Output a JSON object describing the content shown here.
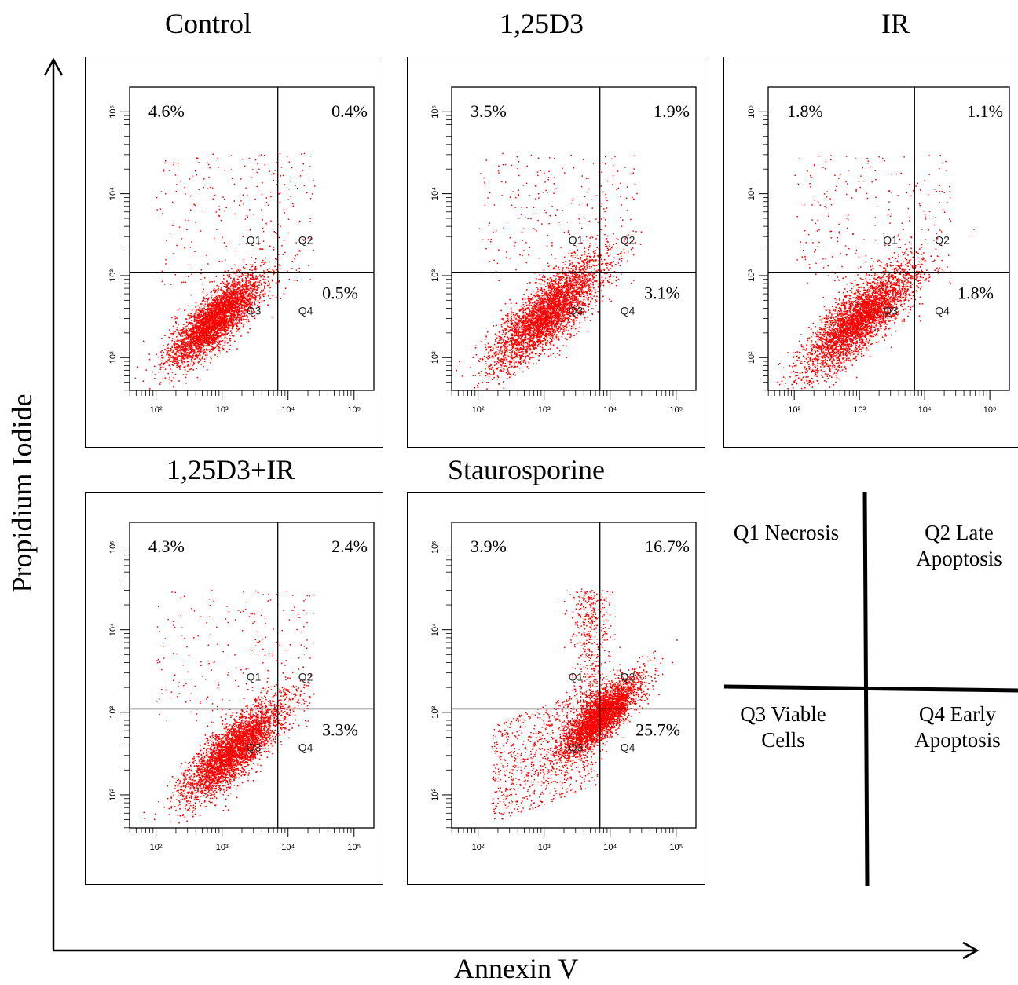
{
  "axis_labels": {
    "x": "Annexin V",
    "y": "Propidium Iodide"
  },
  "colors": {
    "dots": "#ff0000",
    "lines": "#000000"
  },
  "legend": {
    "q1": [
      "Q1 Necrosis"
    ],
    "q2": [
      "Q2 Late",
      "Apoptosis"
    ],
    "q3": [
      "Q3 Viable",
      "Cells"
    ],
    "q4": [
      "Q4 Early",
      "Apoptosis"
    ]
  },
  "chart_data": [
    {
      "type": "scatter",
      "title": "Control",
      "xscale": "log",
      "yscale": "log",
      "x_ticks": [
        "10²",
        "10³",
        "10⁴",
        "10⁵"
      ],
      "y_ticks": [
        "10²",
        "10³",
        "10⁴",
        "10⁵"
      ],
      "gates": {
        "x": 7000,
        "y": 1100
      },
      "quadrant_labels": [
        "Q1",
        "Q2",
        "Q3",
        "Q4"
      ],
      "percentages": {
        "Q1": "4.6%",
        "Q2": "0.4%",
        "Q4": "0.5%"
      },
      "population": {
        "center_x": 800,
        "center_y": 300,
        "spread": 0.35
      }
    },
    {
      "type": "scatter",
      "title": "1,25D3",
      "xscale": "log",
      "yscale": "log",
      "x_ticks": [
        "10²",
        "10³",
        "10⁴",
        "10⁵"
      ],
      "y_ticks": [
        "10²",
        "10³",
        "10⁴",
        "10⁵"
      ],
      "gates": {
        "x": 7000,
        "y": 1100
      },
      "quadrant_labels": [
        "Q1",
        "Q2",
        "Q3",
        "Q4"
      ],
      "percentages": {
        "Q1": "3.5%",
        "Q2": "1.9%",
        "Q4": "3.1%"
      },
      "population": {
        "center_x": 1100,
        "center_y": 350,
        "spread": 0.42
      }
    },
    {
      "type": "scatter",
      "title": "IR",
      "xscale": "log",
      "yscale": "log",
      "x_ticks": [
        "10²",
        "10³",
        "10⁴",
        "10⁵"
      ],
      "y_ticks": [
        "10²",
        "10³",
        "10⁴",
        "10⁵"
      ],
      "gates": {
        "x": 7000,
        "y": 1100
      },
      "quadrant_labels": [
        "Q1",
        "Q2",
        "Q3",
        "Q4"
      ],
      "percentages": {
        "Q1": "1.8%",
        "Q2": "1.1%",
        "Q4": "1.8%"
      },
      "population": {
        "center_x": 1000,
        "center_y": 300,
        "spread": 0.42
      }
    },
    {
      "type": "scatter",
      "title": "1,25D3+IR",
      "xscale": "log",
      "yscale": "log",
      "x_ticks": [
        "10²",
        "10³",
        "10⁴",
        "10⁵"
      ],
      "y_ticks": [
        "10²",
        "10³",
        "10⁴",
        "10⁵"
      ],
      "gates": {
        "x": 7000,
        "y": 1100
      },
      "quadrant_labels": [
        "Q1",
        "Q2",
        "Q3",
        "Q4"
      ],
      "percentages": {
        "Q1": "4.3%",
        "Q2": "2.4%",
        "Q4": "3.3%"
      },
      "population": {
        "center_x": 1500,
        "center_y": 350,
        "spread": 0.38
      }
    },
    {
      "type": "scatter",
      "title": "Staurosporine",
      "xscale": "log",
      "yscale": "log",
      "x_ticks": [
        "10²",
        "10³",
        "10⁴",
        "10⁵"
      ],
      "y_ticks": [
        "10²",
        "10³",
        "10⁴",
        "10⁵"
      ],
      "gates": {
        "x": 7000,
        "y": 1100
      },
      "quadrant_labels": [
        "Q1",
        "Q2",
        "Q3",
        "Q4"
      ],
      "percentages": {
        "Q1": "3.9%",
        "Q2": "16.7%",
        "Q4": "25.7%"
      },
      "population": {
        "center_x": 7000,
        "center_y": 900,
        "spread": 0.3
      }
    }
  ]
}
